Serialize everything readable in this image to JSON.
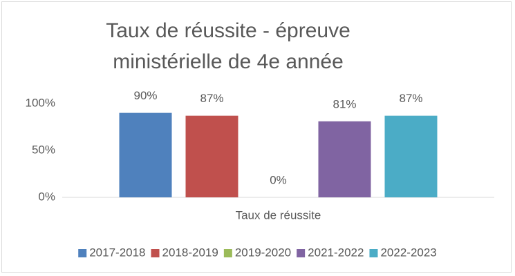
{
  "chart_data": {
    "type": "bar",
    "title": "Taux de réussite - épreuve ministérielle de 4e année",
    "categories": [
      "Taux de réussite"
    ],
    "series": [
      {
        "name": "2017-2018",
        "color": "#4f81bd",
        "values": [
          90
        ],
        "value_labels": [
          "90%"
        ]
      },
      {
        "name": "2018-2019",
        "color": "#c0504d",
        "values": [
          87
        ],
        "value_labels": [
          "87%"
        ]
      },
      {
        "name": "2019-2020",
        "color": "#9bbb59",
        "values": [
          0
        ],
        "value_labels": [
          "0%"
        ]
      },
      {
        "name": "2021-2022",
        "color": "#8064a2",
        "values": [
          81
        ],
        "value_labels": [
          "81%"
        ]
      },
      {
        "name": "2022-2023",
        "color": "#4bacc6",
        "values": [
          87
        ],
        "value_labels": [
          "87%"
        ]
      }
    ],
    "ylim": [
      0,
      100
    ],
    "yticks": [
      {
        "value": 0,
        "label": "0%"
      },
      {
        "value": 50,
        "label": "50%"
      },
      {
        "value": 100,
        "label": "100%"
      }
    ],
    "grid": false,
    "legend": "bottom"
  }
}
